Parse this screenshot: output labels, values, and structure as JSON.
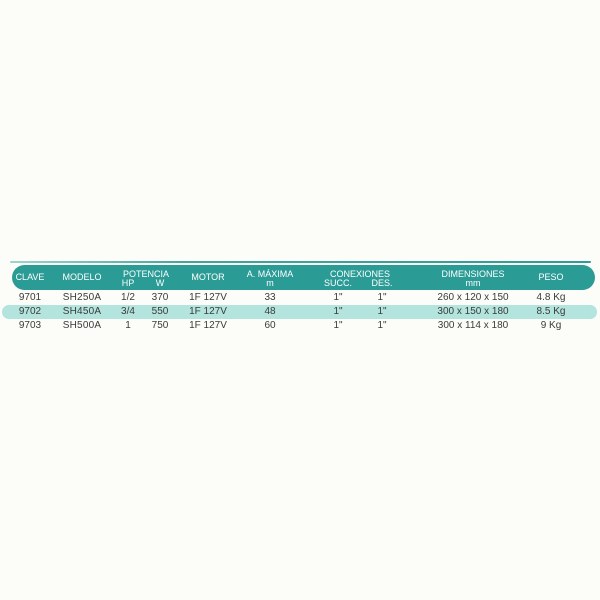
{
  "colors": {
    "header_teal": "#2b9b95",
    "row_highlight": "#b3e4dd",
    "background": "#fcfcf9",
    "header_text": "#ffffff",
    "body_text": "#3b3b3b"
  },
  "table": {
    "header": {
      "clave": "CLAVE",
      "modelo": "MODELO",
      "potencia": "POTENCIA",
      "hp": "HP",
      "w": "W",
      "motor": "MOTOR",
      "a_maxima": "A. MÁXIMA",
      "a_maxima_sub": "m",
      "conexiones": "CONEXIONES",
      "succ": "SUCC.",
      "des": "DES.",
      "dimensiones": "DIMENSIONES",
      "dimensiones_sub": "mm",
      "peso": "PESO"
    },
    "rows": [
      {
        "clave": "9701",
        "modelo": "SH250A",
        "hp": "1/2",
        "w": "370",
        "motor": "1F 127V",
        "a_maxima": "33",
        "succ": "1\"",
        "des": "1\"",
        "dimensiones": "260 x 120 x 150",
        "peso": "4.8 Kg",
        "highlighted": false
      },
      {
        "clave": "9702",
        "modelo": "SH450A",
        "hp": "3/4",
        "w": "550",
        "motor": "1F 127V",
        "a_maxima": "48",
        "succ": "1\"",
        "des": "1\"",
        "dimensiones": "300 x 150 x 180",
        "peso": "8.5 Kg",
        "highlighted": true
      },
      {
        "clave": "9703",
        "modelo": "SH500A",
        "hp": "1",
        "w": "750",
        "motor": "1F 127V",
        "a_maxima": "60",
        "succ": "1\"",
        "des": "1\"",
        "dimensiones": "300 x 114 x 180",
        "peso": "9 Kg",
        "highlighted": false
      }
    ]
  }
}
